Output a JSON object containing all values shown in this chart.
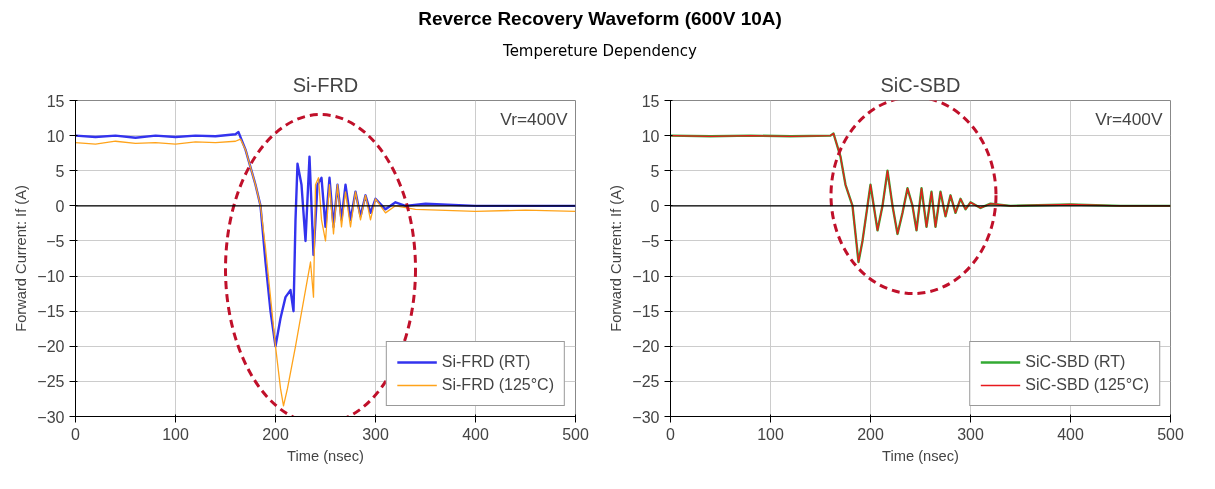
{
  "chart_data": [
    {
      "type": "line",
      "title": "Si-FRD",
      "xlabel": "Time (nsec)",
      "ylabel": "Forward Current: If (A)",
      "annotations": [
        "Reverce Recovery Waveform (600V 10A)",
        "Tempereture Dependency",
        "Vr=400V"
      ],
      "xlim": [
        0,
        500
      ],
      "xticks": [
        0,
        100,
        200,
        300,
        400,
        500
      ],
      "ylim": [
        -30,
        15
      ],
      "yticks": [
        -30,
        -25,
        -20,
        -15,
        -10,
        -5,
        0,
        5,
        10,
        15
      ],
      "grid": true,
      "legend": "bottom right",
      "marker": "none",
      "line_style": "solid",
      "ref_lines": [
        {
          "axis": "y",
          "value": 0,
          "color": "#000000"
        }
      ],
      "series": [
        {
          "name": "Si-FRD (RT)",
          "color": "#3333ee",
          "x": [
            0,
            20,
            40,
            60,
            80,
            100,
            120,
            140,
            160,
            163,
            170,
            180,
            185,
            190,
            195,
            200,
            205,
            210,
            215,
            218,
            220,
            222,
            226,
            230,
            234,
            238,
            242,
            246,
            250,
            254,
            258,
            262,
            266,
            270,
            275,
            280,
            285,
            290,
            295,
            300,
            310,
            320,
            330,
            350,
            400,
            450,
            500
          ],
          "values": [
            10,
            9.8,
            10,
            9.7,
            10,
            9.8,
            10,
            9.9,
            10.2,
            10.5,
            8,
            3,
            0,
            -8,
            -15,
            -20,
            -16,
            -13,
            -12,
            -15,
            -2,
            6,
            3,
            -5,
            7,
            -7,
            3,
            4,
            -3,
            4,
            -3,
            3,
            -2,
            3,
            -2,
            2,
            -1.5,
            1.5,
            -1,
            1,
            -0.5,
            0.5,
            0,
            0.3,
            0,
            0,
            0
          ]
        },
        {
          "name": "Si-FRD (125°C)",
          "color": "#ffa31a",
          "x": [
            0,
            20,
            40,
            60,
            80,
            100,
            120,
            140,
            160,
            165,
            170,
            180,
            185,
            190,
            195,
            200,
            205,
            208,
            212,
            216,
            220,
            225,
            230,
            235,
            238,
            240,
            243,
            246,
            250,
            254,
            258,
            262,
            266,
            270,
            275,
            280,
            285,
            290,
            295,
            300,
            310,
            320,
            340,
            400,
            450,
            500
          ],
          "values": [
            9,
            8.8,
            9.2,
            8.9,
            9,
            8.8,
            9.1,
            9,
            9.2,
            9.5,
            8,
            3,
            0,
            -6,
            -13,
            -20,
            -26,
            -28.5,
            -26,
            -23,
            -20,
            -16,
            -12,
            -8,
            -13,
            3,
            4,
            -2,
            -5,
            3,
            -4,
            3,
            -3,
            2,
            -3,
            2,
            -2,
            1.5,
            -2,
            1,
            -1,
            0,
            -0.5,
            -0.8,
            -0.6,
            -0.8
          ]
        }
      ]
    },
    {
      "type": "line",
      "title": "SiC-SBD",
      "xlabel": "Time (nsec)",
      "ylabel": "Forward Current: If (A)",
      "annotations": [
        "Vr=400V"
      ],
      "xlim": [
        0,
        500
      ],
      "xticks": [
        0,
        100,
        200,
        300,
        400,
        500
      ],
      "ylim": [
        -30,
        15
      ],
      "yticks": [
        -30,
        -25,
        -20,
        -15,
        -10,
        -5,
        0,
        5,
        10,
        15
      ],
      "grid": true,
      "legend": "bottom right",
      "marker": "none",
      "line_style": "solid",
      "ref_lines": [
        {
          "axis": "y",
          "value": 0,
          "color": "#000000"
        }
      ],
      "series": [
        {
          "name": "SiC-SBD (RT)",
          "color": "#33aa33",
          "x": [
            0,
            40,
            80,
            120,
            160,
            163,
            170,
            175,
            182,
            188,
            192,
            196,
            200,
            207,
            212,
            217,
            222,
            227,
            232,
            237,
            242,
            246,
            251,
            256,
            261,
            265,
            270,
            275,
            280,
            285,
            290,
            295,
            300,
            310,
            320,
            340,
            400,
            450,
            500
          ],
          "values": [
            10,
            9.9,
            10,
            9.9,
            10,
            10.3,
            7,
            3,
            0,
            -8,
            -5,
            -1,
            3,
            -3.5,
            0,
            5,
            0,
            -4,
            -1,
            2.5,
            0,
            -3.5,
            2.5,
            -3,
            2,
            -3,
            2,
            -1.5,
            1.5,
            -1,
            1,
            -0.5,
            0.5,
            -0.3,
            0.3,
            0,
            0.2,
            0,
            0
          ]
        },
        {
          "name": "SiC-SBD (125°C)",
          "color": "#e8191d",
          "x": [
            0,
            40,
            80,
            120,
            160,
            163,
            170,
            175,
            182,
            188,
            192,
            196,
            200,
            207,
            212,
            217,
            222,
            227,
            232,
            237,
            242,
            246,
            251,
            256,
            261,
            265,
            270,
            275,
            280,
            285,
            290,
            295,
            300,
            310,
            320,
            340,
            400,
            450,
            500
          ],
          "values": [
            10,
            9.9,
            10,
            9.9,
            10,
            10.3,
            7,
            3,
            0,
            -8,
            -5,
            -1,
            3,
            -3.5,
            0,
            5,
            0,
            -4,
            -1,
            2.5,
            0,
            -3.5,
            2.5,
            -3,
            2,
            -3,
            2,
            -1.5,
            1.5,
            -1,
            1,
            -0.5,
            0.5,
            -0.3,
            0.3,
            0,
            0.2,
            0,
            0
          ]
        }
      ]
    }
  ]
}
